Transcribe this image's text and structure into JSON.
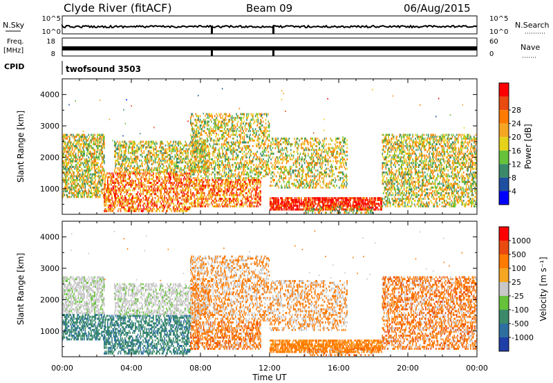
{
  "header": {
    "station": "Clyde River (fitACF)",
    "beam": "Beam 09",
    "date": "06/Aug/2015"
  },
  "top_panels": {
    "nsky_label": "N.Sky",
    "nsky_ticks": [
      "10^5",
      "10^0"
    ],
    "nsearch_label": "N.Search",
    "nsearch_ticks": [
      "10^5",
      "10^0"
    ],
    "freq_label": "Freq.",
    "freq_unit": "[MHz]",
    "freq_ticks": [
      "18",
      "8"
    ],
    "nave_label": "Nave",
    "nave_ticks": [
      "60",
      "0"
    ],
    "cpid_label": "CPID",
    "cpid_value": "twofsound 3503"
  },
  "chart_data": [
    {
      "type": "heatmap",
      "parameter": "power",
      "ylabel": "Slant Range [km]",
      "yticks": [
        "1000",
        "2000",
        "3000",
        "4000"
      ],
      "ylim": [
        180,
        4500
      ],
      "xticks": [
        "00:00",
        "04:00",
        "08:00",
        "12:00",
        "16:00",
        "20:00",
        "00:00"
      ],
      "colorbar_label": "Power [dB]",
      "colorbar_ticks": [
        "4",
        "8",
        "12",
        "16",
        "20",
        "24",
        "28"
      ],
      "colorbar_colors": [
        "#0000ff",
        "#1f4fa0",
        "#3a8a6a",
        "#66c23a",
        "#e6d21a",
        "#f5a623",
        "#ff7a00",
        "#e84a10",
        "#ff0000"
      ]
    },
    {
      "type": "heatmap",
      "parameter": "velocity",
      "ylabel": "Slant Range [km]",
      "yticks": [
        "1000",
        "2000",
        "3000",
        "4000"
      ],
      "ylim": [
        180,
        4500
      ],
      "xlabel": "Time UT",
      "xticks": [
        "00:00",
        "04:00",
        "08:00",
        "12:00",
        "16:00",
        "20:00",
        "00:00"
      ],
      "colorbar_label": "Velocity [m s⁻¹]",
      "colorbar_ticks": [
        "1000",
        "500",
        "100",
        "25",
        "-25",
        "-100",
        "-500",
        "-1000"
      ],
      "colorbar_colors": [
        "#1f3fa8",
        "#2e6fa0",
        "#3a8a6a",
        "#66c23a",
        "#c8c8c8",
        "#f5a623",
        "#ff7a00",
        "#e84a10",
        "#ff0000"
      ]
    }
  ]
}
